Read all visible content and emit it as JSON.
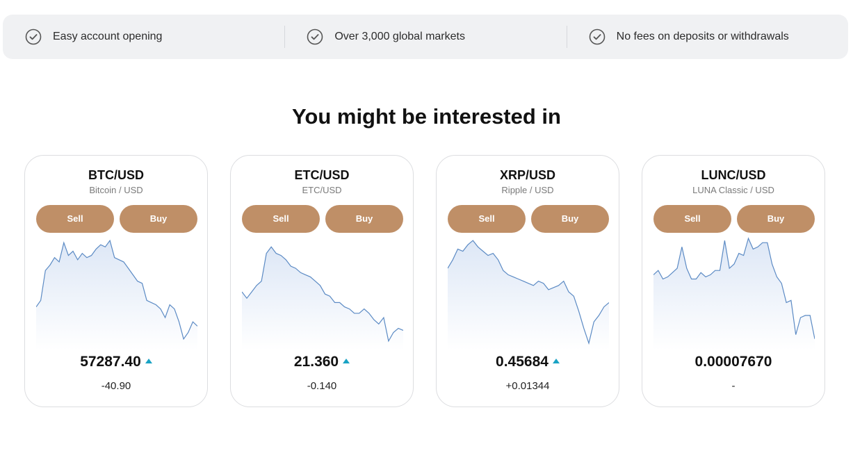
{
  "features": [
    {
      "icon": "check-circle-icon",
      "text": "Easy account opening"
    },
    {
      "icon": "check-circle-icon",
      "text": "Over 3,000 global markets"
    },
    {
      "icon": "check-circle-icon",
      "text": "No fees on deposits or withdrawals"
    }
  ],
  "section_title": "You might be interested in",
  "colors": {
    "button_bg": "#bf8f67",
    "line": "#5b8ac4",
    "area_fill": "#dde7f6",
    "up_arrow": "#1aa3c4"
  },
  "cards": [
    {
      "symbol": "BTC/USD",
      "name": "Bitcoin / USD",
      "sell_label": "Sell",
      "buy_label": "Buy",
      "price": "57287.40",
      "trend": "up",
      "change": "-40.90"
    },
    {
      "symbol": "ETC/USD",
      "name": "ETC/USD",
      "sell_label": "Sell",
      "buy_label": "Buy",
      "price": "21.360",
      "trend": "up",
      "change": "-0.140"
    },
    {
      "symbol": "XRP/USD",
      "name": "Ripple / USD",
      "sell_label": "Sell",
      "buy_label": "Buy",
      "price": "0.45684",
      "trend": "up",
      "change": "+0.01344"
    },
    {
      "symbol": "LUNC/USD",
      "name": "LUNA Classic / USD",
      "sell_label": "Sell",
      "buy_label": "Buy",
      "price": "0.00007670",
      "trend": "none",
      "change": "-"
    }
  ],
  "chart_data": [
    {
      "type": "line",
      "series": [
        {
          "values": [
            0.36,
            0.42,
            0.7,
            0.75,
            0.82,
            0.78,
            0.96,
            0.84,
            0.88,
            0.8,
            0.86,
            0.82,
            0.84,
            0.9,
            0.94,
            0.92,
            0.98,
            0.82,
            0.8,
            0.78,
            0.72,
            0.66,
            0.6,
            0.58,
            0.42,
            0.4,
            0.38,
            0.34,
            0.26,
            0.38,
            0.34,
            0.22,
            0.06,
            0.12,
            0.22,
            0.18
          ]
        }
      ]
    },
    {
      "type": "line",
      "series": [
        {
          "values": [
            0.5,
            0.44,
            0.5,
            0.56,
            0.6,
            0.86,
            0.92,
            0.86,
            0.84,
            0.8,
            0.74,
            0.72,
            0.68,
            0.66,
            0.64,
            0.6,
            0.56,
            0.48,
            0.46,
            0.4,
            0.4,
            0.36,
            0.34,
            0.3,
            0.3,
            0.34,
            0.3,
            0.24,
            0.2,
            0.26,
            0.04,
            0.12,
            0.16,
            0.14
          ]
        }
      ]
    },
    {
      "type": "line",
      "series": [
        {
          "values": [
            0.72,
            0.8,
            0.9,
            0.88,
            0.94,
            0.98,
            0.92,
            0.88,
            0.84,
            0.86,
            0.8,
            0.7,
            0.66,
            0.64,
            0.62,
            0.6,
            0.58,
            0.56,
            0.6,
            0.58,
            0.52,
            0.54,
            0.56,
            0.6,
            0.5,
            0.46,
            0.32,
            0.16,
            0.02,
            0.22,
            0.28,
            0.36,
            0.4
          ]
        }
      ]
    },
    {
      "type": "line",
      "series": [
        {
          "values": [
            0.66,
            0.7,
            0.62,
            0.64,
            0.68,
            0.72,
            0.92,
            0.72,
            0.62,
            0.62,
            0.68,
            0.64,
            0.66,
            0.7,
            0.7,
            0.98,
            0.72,
            0.76,
            0.86,
            0.84,
            1.0,
            0.9,
            0.92,
            0.96,
            0.96,
            0.76,
            0.64,
            0.58,
            0.4,
            0.42,
            0.1,
            0.26,
            0.28,
            0.28,
            0.06
          ]
        }
      ]
    }
  ]
}
